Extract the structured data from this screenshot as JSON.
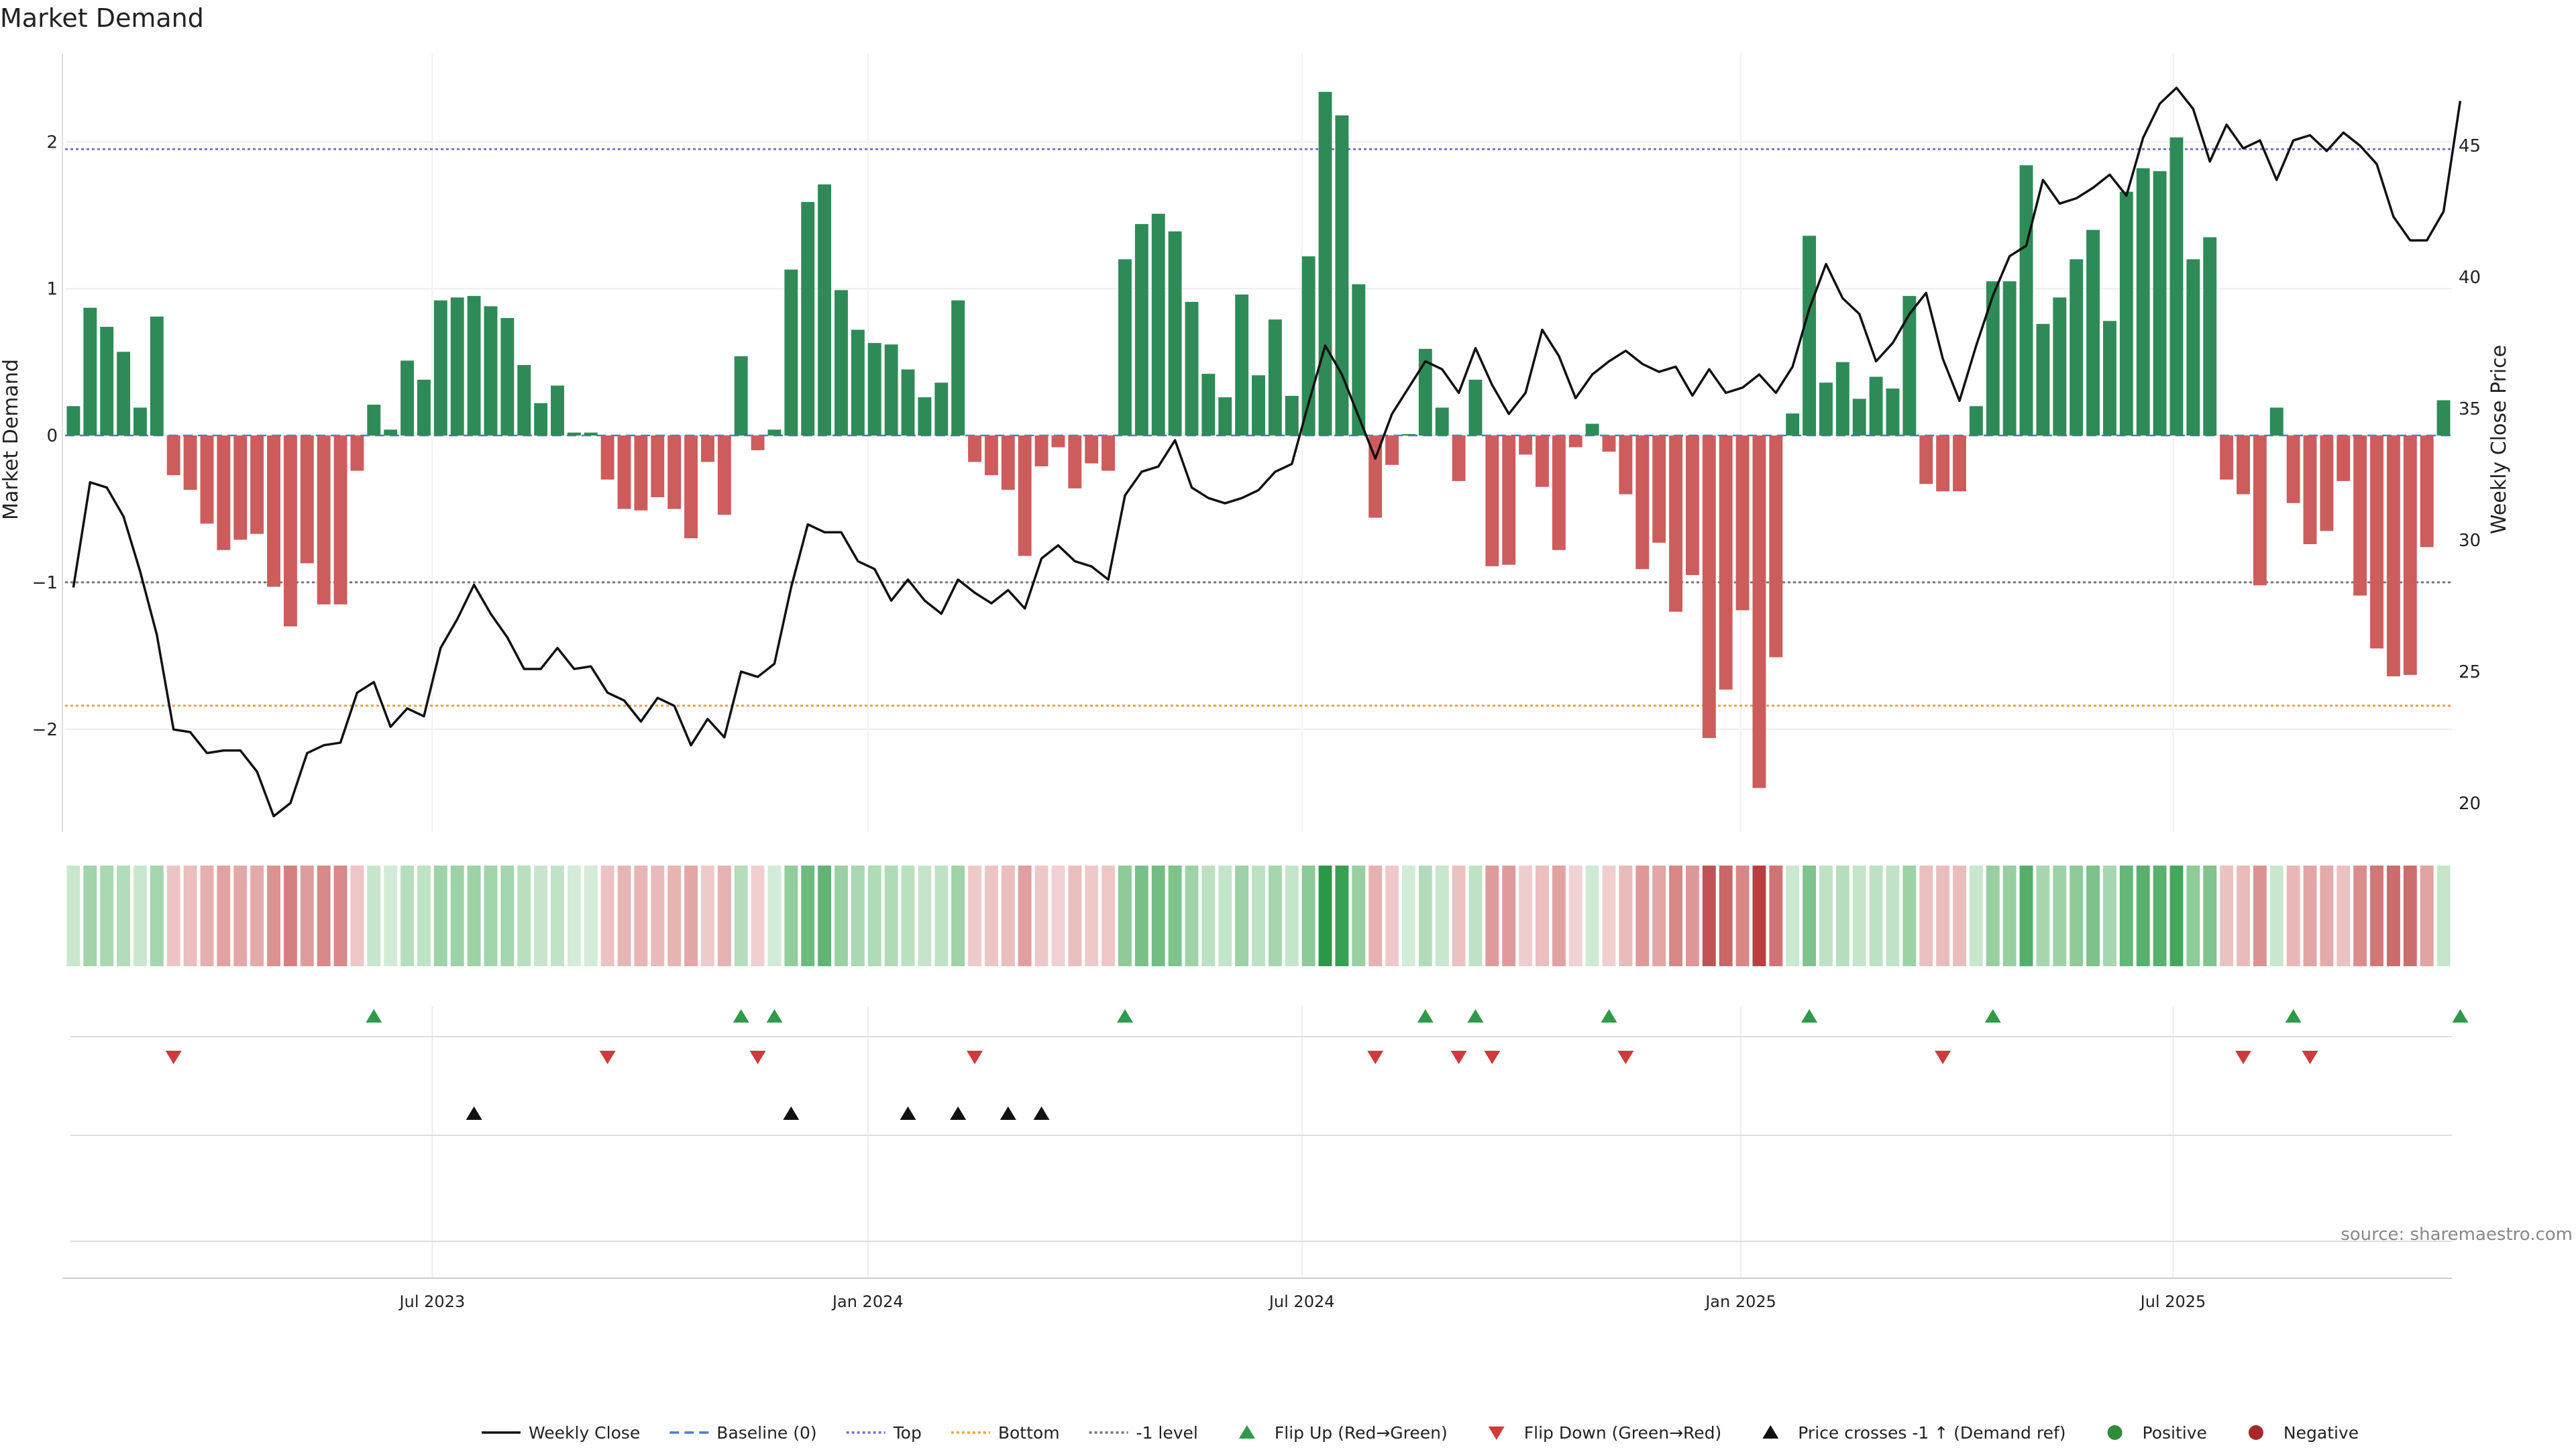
{
  "chart_data": {
    "type": "bar",
    "title": "Market Demand",
    "ylabel_left": "Market Demand",
    "ylabel_right": "Weekly Close Price",
    "ylim_left": [
      -2.7,
      2.6
    ],
    "ylim_right": [
      18.9,
      48.5
    ],
    "yticks_left": [
      {
        "v": 2,
        "label": "2"
      },
      {
        "v": 1,
        "label": "1"
      },
      {
        "v": 0,
        "label": "0"
      },
      {
        "v": -1,
        "label": "−1"
      },
      {
        "v": -2,
        "label": "−2"
      }
    ],
    "yticks_right": [
      {
        "v": 45,
        "label": "45"
      },
      {
        "v": 40,
        "label": "40"
      },
      {
        "v": 35,
        "label": "35"
      },
      {
        "v": 30,
        "label": "30"
      },
      {
        "v": 25,
        "label": "25"
      },
      {
        "v": 20,
        "label": "20"
      }
    ],
    "x_ticks": [
      {
        "i": 21.5,
        "label": "Jul 2023"
      },
      {
        "i": 47.6,
        "label": "Jan 2024"
      },
      {
        "i": 73.6,
        "label": "Jul 2024"
      },
      {
        "i": 99.9,
        "label": "Jan 2025"
      },
      {
        "i": 125.8,
        "label": "Jul 2025"
      }
    ],
    "reference_lines": [
      {
        "name": "Top",
        "value": 1.95,
        "color": "#7b6fd0"
      },
      {
        "name": "Bottom",
        "value": -1.84,
        "color": "#e8a040"
      },
      {
        "name": "-1 level",
        "value": -1.0,
        "color": "#777777"
      }
    ],
    "demand_values": [
      0.2,
      0.87,
      0.74,
      0.57,
      0.19,
      0.81,
      -0.27,
      -0.37,
      -0.6,
      -0.78,
      -0.71,
      -0.67,
      -1.03,
      -1.3,
      -0.87,
      -1.15,
      -1.15,
      -0.24,
      0.21,
      0.04,
      0.51,
      0.38,
      0.92,
      0.94,
      0.95,
      0.88,
      0.8,
      0.48,
      0.22,
      0.34,
      0.02,
      0.02,
      -0.3,
      -0.5,
      -0.51,
      -0.42,
      -0.5,
      -0.7,
      -0.18,
      -0.54,
      0.54,
      -0.1,
      0.04,
      1.13,
      1.59,
      1.71,
      0.99,
      0.72,
      0.63,
      0.62,
      0.45,
      0.26,
      0.36,
      0.92,
      -0.18,
      -0.27,
      -0.37,
      -0.82,
      -0.21,
      -0.08,
      -0.36,
      -0.19,
      -0.24,
      1.2,
      1.44,
      1.51,
      1.39,
      0.91,
      0.42,
      0.26,
      0.96,
      0.41,
      0.79,
      0.27,
      1.22,
      2.34,
      2.18,
      1.03,
      -0.56,
      -0.2,
      0.01,
      0.59,
      0.19,
      -0.31,
      0.38,
      -0.89,
      -0.88,
      -0.13,
      -0.35,
      -0.78,
      -0.08,
      0.08,
      -0.11,
      -0.4,
      -0.91,
      -0.73,
      -1.2,
      -0.95,
      -2.06,
      -1.73,
      -1.19,
      -2.4,
      -1.51,
      0.15,
      1.36,
      0.36,
      0.5,
      0.25,
      0.4,
      0.32,
      0.95,
      -0.33,
      -0.38,
      -0.38,
      0.2,
      1.05,
      1.05,
      1.84,
      0.76,
      0.94,
      1.2,
      1.4,
      0.78,
      1.66,
      1.82,
      1.8,
      2.03,
      1.2,
      1.35,
      -0.3,
      -0.4,
      -1.02,
      0.19,
      -0.46,
      -0.74,
      -0.65,
      -0.31,
      -1.09,
      -1.45,
      -1.64,
      -1.63,
      -0.76,
      0.24
    ],
    "weekly_close": [
      28.2,
      32.2,
      32.0,
      30.9,
      28.8,
      26.4,
      22.8,
      22.7,
      21.9,
      22.0,
      22.0,
      21.2,
      19.5,
      20.0,
      21.9,
      22.2,
      22.3,
      24.2,
      24.6,
      22.9,
      23.6,
      23.3,
      25.9,
      27.0,
      28.3,
      27.2,
      26.3,
      25.1,
      25.1,
      25.9,
      25.1,
      25.2,
      24.2,
      23.9,
      23.1,
      24.0,
      23.7,
      22.2,
      23.2,
      22.5,
      25.0,
      24.8,
      25.3,
      28.2,
      30.6,
      30.3,
      30.3,
      29.2,
      28.9,
      27.7,
      28.5,
      27.7,
      27.2,
      28.5,
      28.0,
      27.6,
      28.1,
      27.4,
      29.3,
      29.8,
      29.2,
      29.0,
      28.5,
      31.7,
      32.6,
      32.8,
      33.8,
      32.0,
      31.6,
      31.4,
      31.6,
      31.9,
      32.6,
      32.9,
      35.2,
      37.4,
      36.3,
      34.7,
      33.1,
      34.8,
      35.8,
      36.8,
      36.5,
      35.6,
      37.3,
      35.9,
      34.8,
      35.6,
      38.0,
      37.0,
      35.4,
      36.3,
      36.8,
      37.2,
      36.7,
      36.4,
      36.6,
      35.5,
      36.5,
      35.6,
      35.8,
      36.3,
      35.6,
      36.6,
      38.8,
      40.5,
      39.2,
      38.6,
      36.8,
      37.5,
      38.6,
      39.4,
      36.9,
      35.3,
      37.4,
      39.3,
      40.8,
      41.2,
      43.7,
      42.8,
      43.0,
      43.4,
      43.9,
      43.1,
      45.3,
      46.6,
      47.2,
      46.4,
      44.4,
      45.8,
      44.9,
      45.2,
      43.7,
      45.2,
      45.4,
      44.8,
      45.5,
      45.0,
      44.3,
      42.3,
      41.4,
      41.4,
      42.5,
      46.7
    ],
    "heat_strip": "weekly demand intensity heat strip",
    "flip_up_idx": [
      18,
      40,
      42,
      63,
      81,
      84,
      92,
      104,
      115,
      133,
      143
    ],
    "flip_down_idx": [
      6,
      32,
      41,
      54,
      78,
      83,
      85,
      93,
      112,
      130,
      134
    ],
    "price_cross_idx": [
      24,
      43,
      50,
      53,
      56,
      58
    ],
    "source": "source: sharemaestro.com",
    "legend": [
      {
        "label": "Weekly Close",
        "kind": "line-solid",
        "color": "#111111"
      },
      {
        "label": "Baseline (0)",
        "kind": "line-dash",
        "color": "#4a7fc1"
      },
      {
        "label": "Top",
        "kind": "line-dot",
        "color": "#7b6fd0"
      },
      {
        "label": "Bottom",
        "kind": "line-dot",
        "color": "#e8a040"
      },
      {
        "label": "-1 level",
        "kind": "line-dot",
        "color": "#777777"
      },
      {
        "label": "Flip Up (Red→Green)",
        "kind": "tri-up",
        "color": "#2e9a4a"
      },
      {
        "label": "Flip Down (Green→Red)",
        "kind": "tri-down",
        "color": "#d03a3a"
      },
      {
        "label": "Price crosses -1 ↑ (Demand ref)",
        "kind": "tri-up",
        "color": "#111111"
      },
      {
        "label": "Positive",
        "kind": "dot",
        "color": "#2e8b3a"
      },
      {
        "label": "Negative",
        "kind": "dot",
        "color": "#a82828"
      }
    ],
    "colors": {
      "positive": "#2e8b57",
      "negative": "#cd5c5c",
      "price": "#111111",
      "baseline": "#4a7fc1",
      "grid": "#eeeeee"
    }
  }
}
